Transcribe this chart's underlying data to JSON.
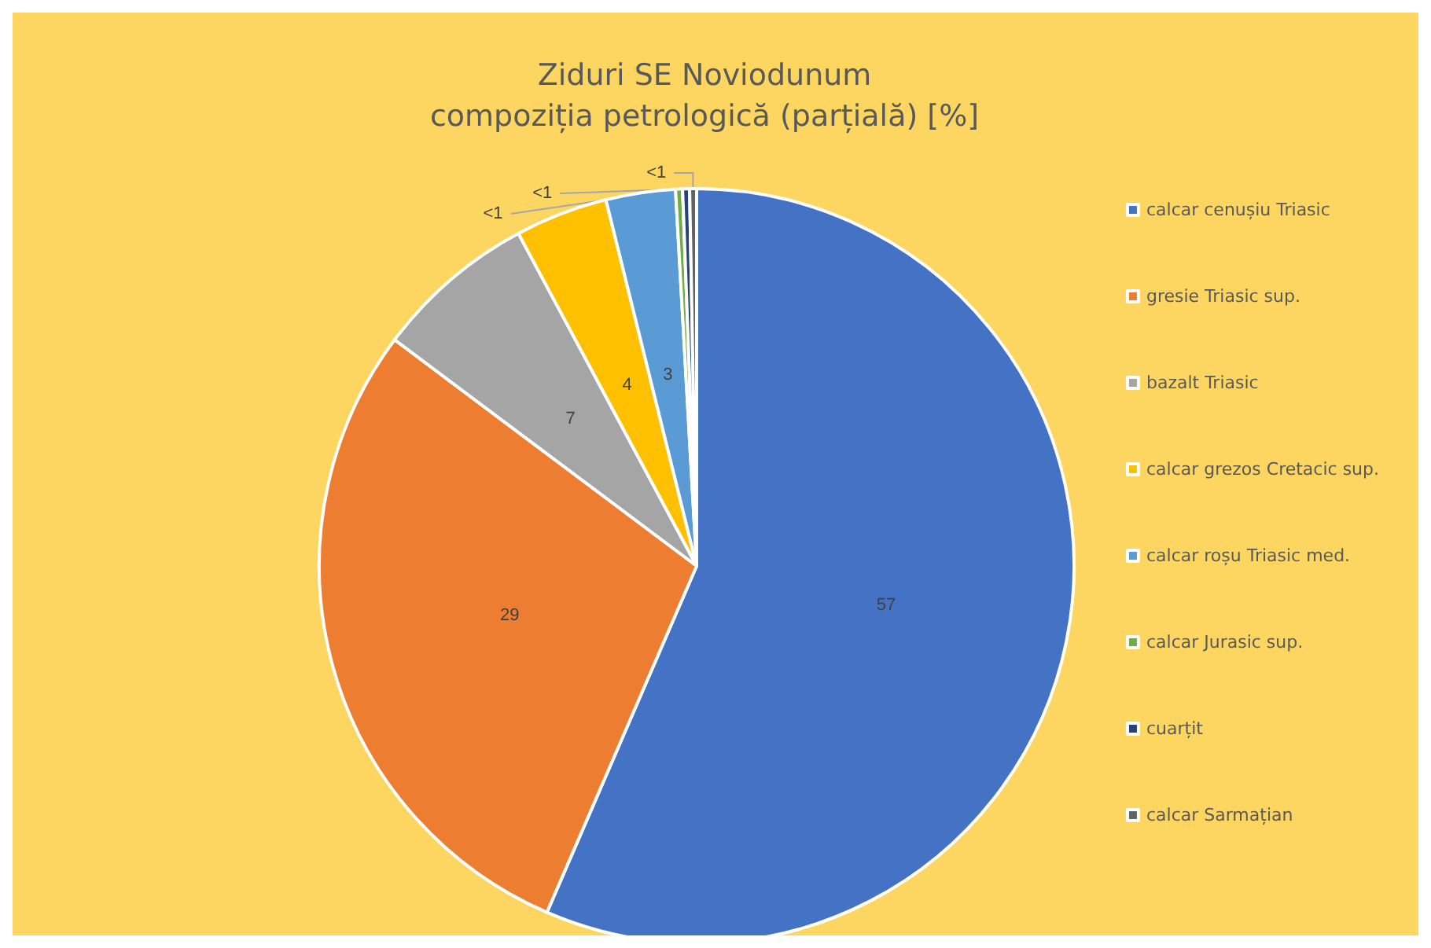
{
  "chart_data": {
    "type": "pie",
    "title": "Ziduri SE Noviodunum\ncompoziția petrologică (parțială) [%]",
    "categories": [
      "calcar cenușiu Triasic",
      "gresie Triasic sup.",
      "bazalt Triasic",
      "calcar grezos Cretacic sup.",
      "calcar roșu Triasic med.",
      "calcar Jurasic sup.",
      "cuarțit",
      "calcar Sarmațian"
    ],
    "values": [
      57,
      29,
      7,
      4,
      3,
      0.3,
      0.3,
      0.3
    ],
    "value_labels": [
      "57",
      "29",
      "7",
      "4",
      "3",
      "<1",
      "<1",
      "<1"
    ],
    "colors": [
      "#4472c4",
      "#ed7d31",
      "#a5a5a5",
      "#ffc000",
      "#5b9bd5",
      "#70ad47",
      "#264478",
      "#636363"
    ],
    "legend": "right"
  }
}
